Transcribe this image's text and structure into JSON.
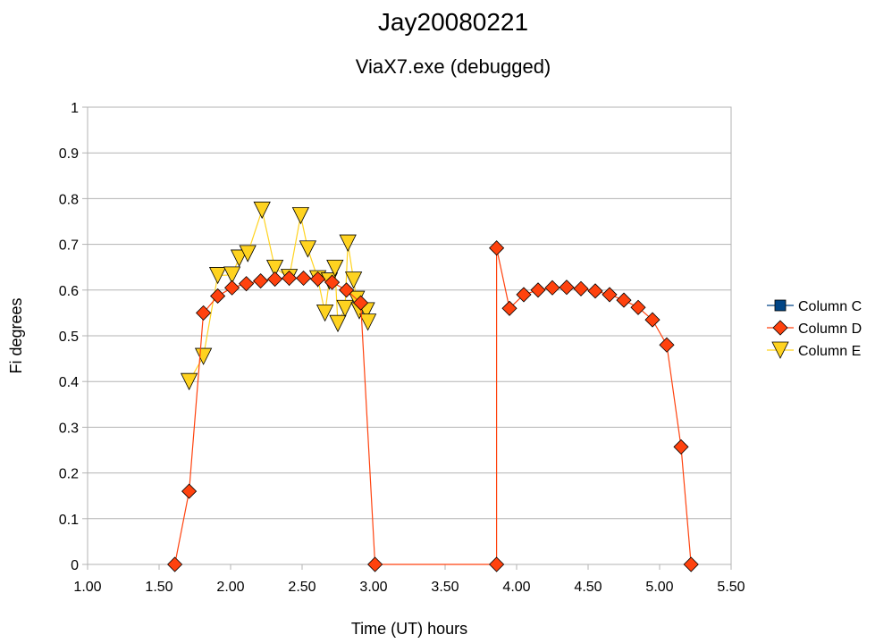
{
  "chart_data": {
    "type": "scatter",
    "title": "Jay20080221",
    "subtitle": "ViaX7.exe (debugged)",
    "xlabel": "Time (UT) hours",
    "ylabel": "Fi degrees",
    "xlim": [
      1.0,
      5.5
    ],
    "ylim": [
      0,
      1
    ],
    "x_ticks": [
      "1.00",
      "1.50",
      "2.00",
      "2.50",
      "3.00",
      "3.50",
      "4.00",
      "4.50",
      "5.00",
      "5.50"
    ],
    "y_ticks": [
      "0",
      "0.1",
      "0.2",
      "0.3",
      "0.4",
      "0.5",
      "0.6",
      "0.7",
      "0.8",
      "0.9",
      "1"
    ],
    "grid": "horizontal",
    "legend_position": "right",
    "series": [
      {
        "name": "Column C",
        "marker": "square",
        "color": "#004586",
        "points": []
      },
      {
        "name": "Column D",
        "marker": "diamond",
        "color": "#ff420e",
        "points": [
          [
            1.61,
            0.0
          ],
          [
            1.71,
            0.16
          ],
          [
            1.81,
            0.55
          ],
          [
            1.91,
            0.587
          ],
          [
            2.01,
            0.605
          ],
          [
            2.11,
            0.614
          ],
          [
            2.21,
            0.62
          ],
          [
            2.31,
            0.624
          ],
          [
            2.41,
            0.626
          ],
          [
            2.51,
            0.626
          ],
          [
            2.61,
            0.624
          ],
          [
            2.71,
            0.617
          ],
          [
            2.81,
            0.6
          ],
          [
            2.91,
            0.572
          ],
          [
            3.01,
            0.0
          ],
          [
            3.86,
            0.0
          ],
          [
            3.86,
            0.692
          ],
          [
            3.95,
            0.56
          ],
          [
            4.05,
            0.59
          ],
          [
            4.15,
            0.6
          ],
          [
            4.25,
            0.605
          ],
          [
            4.35,
            0.606
          ],
          [
            4.45,
            0.603
          ],
          [
            4.55,
            0.598
          ],
          [
            4.65,
            0.59
          ],
          [
            4.75,
            0.578
          ],
          [
            4.85,
            0.562
          ],
          [
            4.95,
            0.535
          ],
          [
            5.05,
            0.48
          ],
          [
            5.15,
            0.257
          ],
          [
            5.22,
            0.0
          ]
        ]
      },
      {
        "name": "Column E",
        "marker": "triangle-down",
        "color": "#ffd320",
        "points": [
          [
            1.71,
            0.4
          ],
          [
            1.81,
            0.455
          ],
          [
            1.91,
            0.632
          ],
          [
            2.01,
            0.633
          ],
          [
            2.06,
            0.67
          ],
          [
            2.12,
            0.68
          ],
          [
            2.22,
            0.775
          ],
          [
            2.31,
            0.648
          ],
          [
            2.41,
            0.628
          ],
          [
            2.49,
            0.763
          ],
          [
            2.54,
            0.69
          ],
          [
            2.61,
            0.625
          ],
          [
            2.66,
            0.55
          ],
          [
            2.69,
            0.62
          ],
          [
            2.73,
            0.648
          ],
          [
            2.75,
            0.527
          ],
          [
            2.8,
            0.56
          ],
          [
            2.82,
            0.703
          ],
          [
            2.86,
            0.622
          ],
          [
            2.88,
            0.58
          ],
          [
            2.9,
            0.555
          ],
          [
            2.95,
            0.555
          ],
          [
            2.96,
            0.53
          ]
        ]
      }
    ]
  }
}
